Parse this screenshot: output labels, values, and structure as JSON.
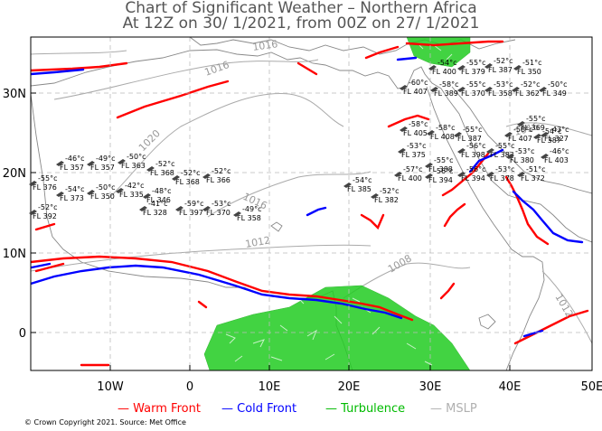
{
  "title_line1": "Chart of Significant Weather – Northern Africa",
  "title_line2": "At 12Z on 30/ 1/2021, from 00Z on 27/ 1/2021",
  "x_ticks": [
    "10W",
    "0",
    "10E",
    "20E",
    "30E",
    "40E",
    "50E"
  ],
  "y_ticks": [
    "30N",
    "20N",
    "10N",
    "0"
  ],
  "isobars": [
    "1016",
    "1020",
    "1016",
    "1012",
    "1008",
    "1016",
    "1012",
    "1016"
  ],
  "legend": [
    {
      "label": "Warm Front",
      "color": "#ff0000"
    },
    {
      "label": "Cold Front",
      "color": "#0000ff"
    },
    {
      "label": "Turbulence",
      "color": "#00bb00"
    },
    {
      "label": "MSLP",
      "color": "#b0b0b0"
    }
  ],
  "copyright": "© Crown Copyright 2021. Source: Met Office",
  "colors": {
    "warm": "#ff0000",
    "cold": "#0000ff",
    "turb": "#22cc22",
    "mslp": "#aaaaaa",
    "coast": "#888888",
    "grid": "#bbbbbb"
  },
  "stations": [
    {
      "t": "-55°c",
      "fl": "FL 376"
    },
    {
      "t": "-52°c",
      "fl": "FL 392"
    },
    {
      "t": "-46°c",
      "fl": "FL 357"
    },
    {
      "t": "-54°c",
      "fl": "FL 373"
    },
    {
      "t": "-49°c",
      "fl": "FL 357"
    },
    {
      "t": "-50°c",
      "fl": "FL 350"
    },
    {
      "t": "-50°c",
      "fl": "FL 363"
    },
    {
      "t": "-42°c",
      "fl": "FL 335"
    },
    {
      "t": "-52°c",
      "fl": "FL 368"
    },
    {
      "t": "-48°c",
      "fl": "FL 346"
    },
    {
      "t": "-41°c",
      "fl": "FL 328"
    },
    {
      "t": "-52°c",
      "fl": "FL 368"
    },
    {
      "t": "-59°c",
      "fl": "FL 397"
    },
    {
      "t": "-52°c",
      "fl": "FL 366"
    },
    {
      "t": "-53°c",
      "fl": "FL 370"
    },
    {
      "t": "-49°c",
      "fl": "FL 358"
    },
    {
      "t": "-54°c",
      "fl": "FL 385"
    },
    {
      "t": "-52°c",
      "fl": "FL 382"
    },
    {
      "t": "-53°c",
      "fl": "FL 375"
    },
    {
      "t": "-57°c",
      "fl": "FL 400"
    },
    {
      "t": "-55°c",
      "fl": "FL 388"
    },
    {
      "t": "-56°c",
      "fl": "FL 394"
    },
    {
      "t": "-58°c",
      "fl": "FL 405"
    },
    {
      "t": "-58°c",
      "fl": "FL 408"
    },
    {
      "t": "-55°c",
      "fl": "FL 387"
    },
    {
      "t": "-56°c",
      "fl": "FL 394"
    },
    {
      "t": "-54°c",
      "fl": "FL 400"
    },
    {
      "t": "-55°c",
      "fl": "FL 379"
    },
    {
      "t": "-52°c",
      "fl": "FL 387"
    },
    {
      "t": "-51°c",
      "fl": "FL 350"
    },
    {
      "t": "-60°c",
      "fl": "FL 407"
    },
    {
      "t": "-58°c",
      "fl": "FL 389"
    },
    {
      "t": "-55°c",
      "fl": "FL 370"
    },
    {
      "t": "-53°c",
      "fl": "FL 358"
    },
    {
      "t": "-52°c",
      "fl": "FL 362"
    },
    {
      "t": "-50°c",
      "fl": "FL 349"
    },
    {
      "t": "-56°c",
      "fl": "FL 398"
    },
    {
      "t": "-55°c",
      "fl": "FL 383"
    },
    {
      "t": "-53°c",
      "fl": "FL 378"
    },
    {
      "t": "-51°c",
      "fl": "FL 372"
    },
    {
      "t": "-58°c",
      "fl": "FL 407"
    },
    {
      "t": "-53°c",
      "fl": "FL 380"
    },
    {
      "t": "-55°c",
      "fl": "FL 369"
    },
    {
      "t": "-54°c",
      "fl": "FL 387"
    },
    {
      "t": "-43°c",
      "fl": "FL 327"
    },
    {
      "t": "-46°c",
      "fl": "FL 403"
    }
  ]
}
